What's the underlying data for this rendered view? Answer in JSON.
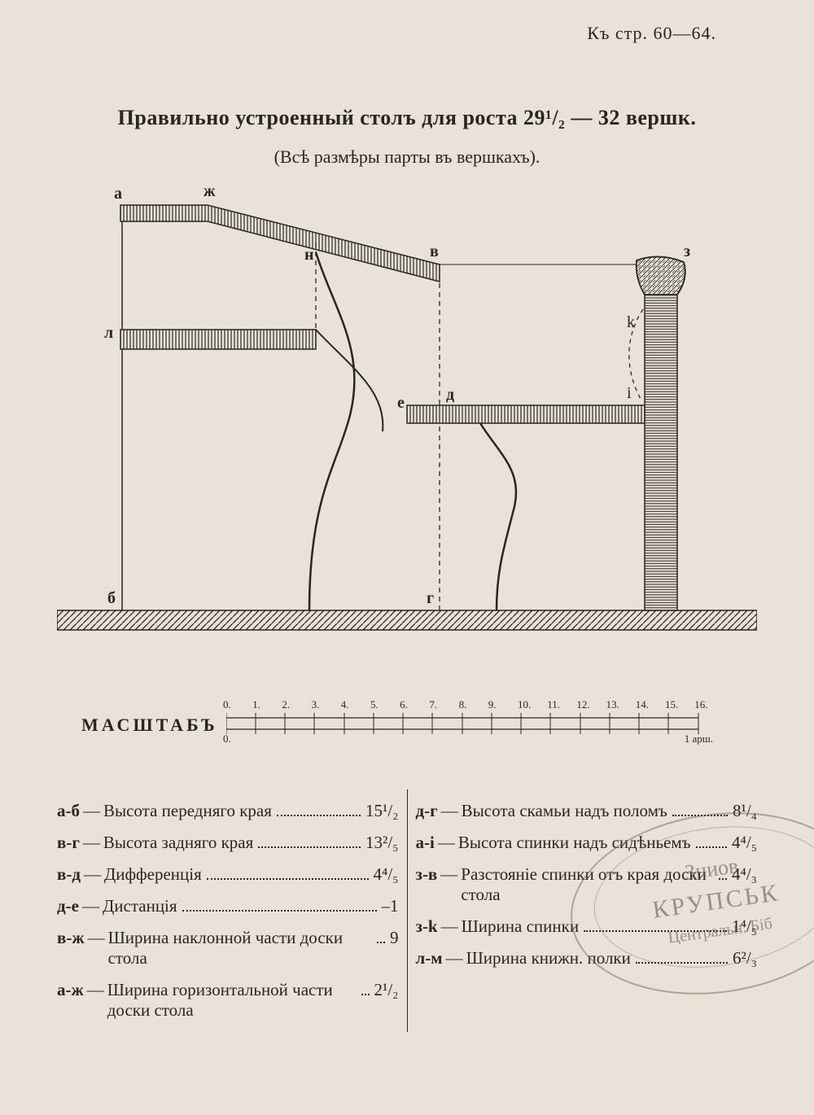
{
  "page_reference": "Къ стр. 60—64.",
  "title": "Правильно устроенный столъ для роста 29¹/₂ — 32 вершк.",
  "subtitle": "(Всѣ размѣры парты въ вершкахъ).",
  "diagram": {
    "labels": {
      "a": "а",
      "zh": "ж",
      "v": "в",
      "z": "з",
      "n": "н",
      "l": "л",
      "k": "k",
      "i": "i",
      "e": "е",
      "d": "д",
      "b": "б",
      "g": "г"
    },
    "colors": {
      "ink": "#2a2520",
      "paper": "#e8e2d8",
      "hatch": "#2a2520"
    },
    "geometry_notes": "Side elevation of school desk: sloped desktop а-ж-в, shelf л, seat е-д-i, backrest з-k, floor hatched. Dashed verticals at н, д, i."
  },
  "scale": {
    "label": "МАСШТАБЪ",
    "ticks": [
      "0.",
      "1.",
      "2.",
      "3.",
      "4.",
      "5.",
      "6.",
      "7.",
      "8.",
      "9.",
      "10.",
      "11.",
      "12.",
      "13.",
      "14.",
      "15.",
      "16."
    ],
    "unit_right": "1 арш.",
    "unit_left": "0."
  },
  "legend": {
    "left": [
      {
        "key": "а-б",
        "desc": "Высота передняго края",
        "value": "15¹/₂"
      },
      {
        "key": "в-г",
        "desc": "Высота задняго края",
        "value": "13²/₅"
      },
      {
        "key": "в-д",
        "desc": "Дифференція",
        "value": "4⁴/₅"
      },
      {
        "key": "д-е",
        "desc": "Дистанція",
        "value": "–1"
      },
      {
        "key": "в-ж",
        "desc": "Ширина наклонной части доски стола",
        "value": "9"
      },
      {
        "key": "а-ж",
        "desc": "Ширина горизонтальной части доски стола",
        "value": "2¹/₂"
      }
    ],
    "right": [
      {
        "key": "д-г",
        "desc": "Высота скамьи надъ поломъ",
        "value": "8¹/₄"
      },
      {
        "key": "а-i",
        "desc": "Высота спинки надъ сидѣньемъ",
        "value": "4⁴/₅"
      },
      {
        "key": "з-в",
        "desc": "Разстояніе спинки отъ края доски стола",
        "value": "4⁴/₃"
      },
      {
        "key": "з-k",
        "desc": "Ширина спинки",
        "value": "1⁴/₅"
      },
      {
        "key": "л-м",
        "desc": "Ширина книжн. полки",
        "value": "6²/₃"
      }
    ]
  },
  "stamp": {
    "line1": "Зниов",
    "line2": "КРУПСЬК",
    "line3": "Центральн. Біб"
  }
}
